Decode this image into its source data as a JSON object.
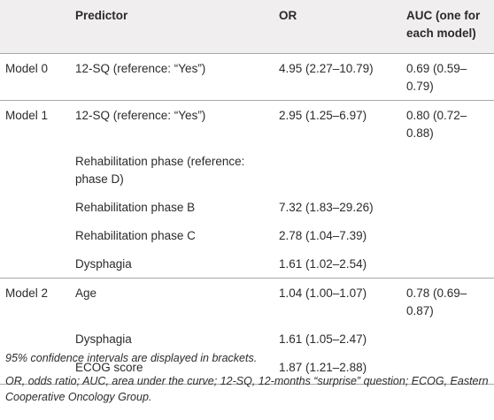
{
  "table": {
    "headers": [
      "",
      "Predictor",
      "OR",
      "AUC (one for each model)"
    ],
    "rows": [
      {
        "model": "Model 0",
        "predictor": "12-SQ (reference: “Yes”)",
        "or": "4.95 (2.27–10.79)",
        "auc": "0.69 (0.59–0.79)"
      },
      {
        "model": "Model 1",
        "predictor": "12-SQ (reference: “Yes”)",
        "or": "2.95 (1.25–6.97)",
        "auc": "0.80 (0.72–0.88)"
      },
      {
        "model": "",
        "predictor": "Rehabilitation phase (reference: phase D)",
        "or": "",
        "auc": ""
      },
      {
        "model": "",
        "predictor": "Rehabilitation phase B",
        "or": "7.32 (1.83–29.26)",
        "auc": ""
      },
      {
        "model": "",
        "predictor": "Rehabilitation phase C",
        "or": "2.78 (1.04–7.39)",
        "auc": ""
      },
      {
        "model": "",
        "predictor": "Dysphagia",
        "or": "1.61 (1.02–2.54)",
        "auc": ""
      },
      {
        "model": "Model 2",
        "predictor": "Age",
        "or": "1.04 (1.00–1.07)",
        "auc": "0.78 (0.69–0.87)"
      },
      {
        "model": "",
        "predictor": "Dysphagia",
        "or": "1.61 (1.05–2.47)",
        "auc": ""
      },
      {
        "model": "",
        "predictor": "ECOG score",
        "or": "1.87 (1.21–2.88)",
        "auc": ""
      }
    ]
  },
  "notes": {
    "line1": "95% confidence intervals are displayed in brackets.",
    "line2": "OR, odds ratio; AUC, area under the curve; 12-SQ, 12-months “surprise” question; ECOG, Eastern Cooperative Oncology Group."
  }
}
